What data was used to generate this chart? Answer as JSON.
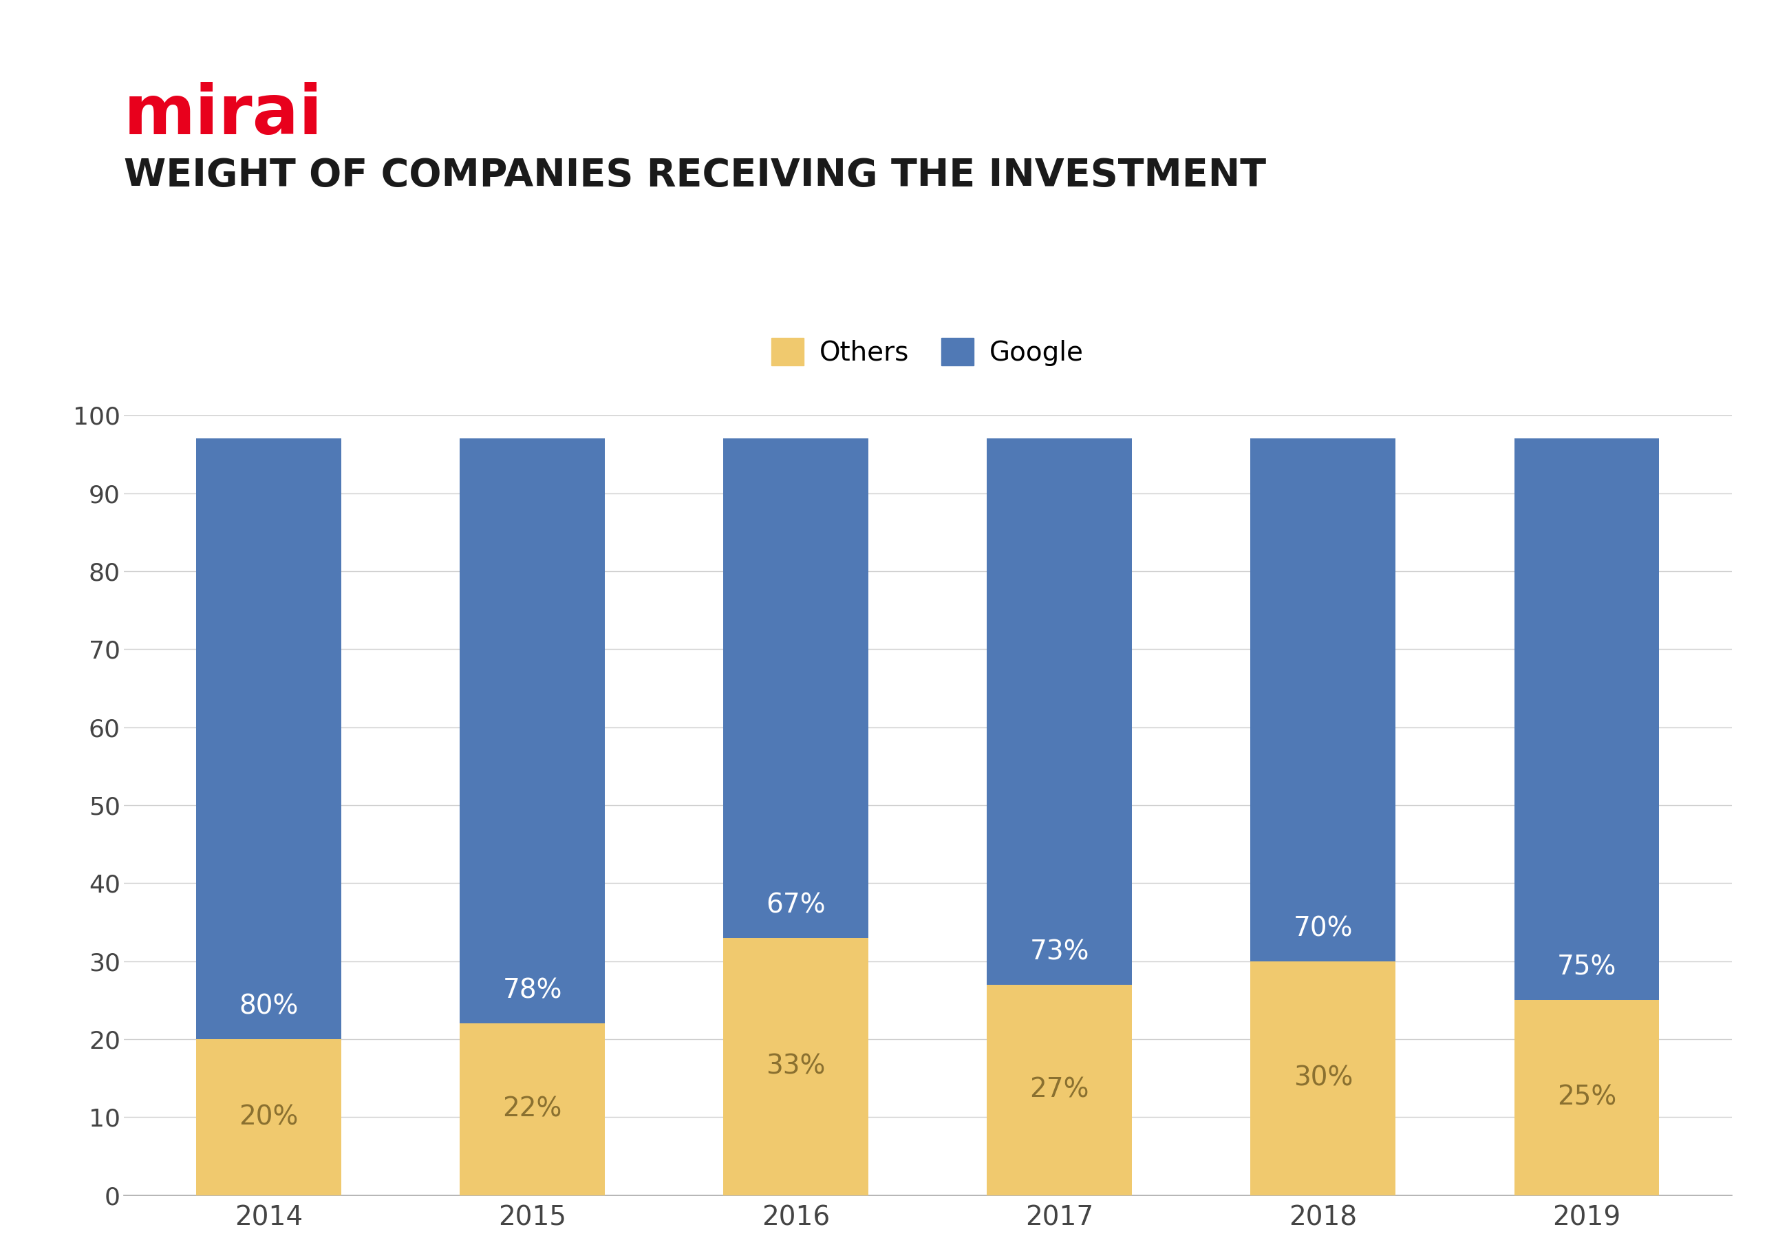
{
  "title_brand": "mirai",
  "title_brand_color": "#e8001c",
  "title_main": "WEIGHT OF COMPANIES RECEIVING THE INVESTMENT",
  "title_main_color": "#1a1a1a",
  "categories": [
    "2014",
    "2015",
    "2016",
    "2017",
    "2018",
    "2019"
  ],
  "others_values": [
    20,
    22,
    33,
    27,
    30,
    25
  ],
  "google_values": [
    80,
    78,
    67,
    73,
    70,
    75
  ],
  "total_bar_height": [
    97,
    97,
    97,
    97,
    97,
    97
  ],
  "others_color": "#f0c96e",
  "google_color": "#5079b5",
  "background_color": "#ffffff",
  "legend_others_label": "Others",
  "legend_google_label": "Google",
  "ylim": [
    0,
    100
  ],
  "yticks": [
    0,
    10,
    20,
    30,
    40,
    50,
    60,
    70,
    80,
    90,
    100
  ],
  "grid_color": "#d0d0d0",
  "bar_width": 0.55,
  "label_fontsize_pct": 28,
  "label_fontsize_brand": 72,
  "label_fontsize_title": 40,
  "label_fontsize_legend": 28,
  "label_fontsize_xtick": 28,
  "label_fontsize_ytick": 26,
  "others_text_color": "#8a7030",
  "google_text_color": "#ffffff"
}
